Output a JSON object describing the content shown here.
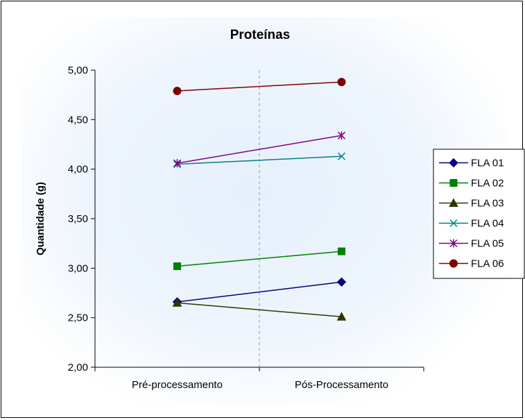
{
  "chart_data": {
    "type": "line",
    "title": "Proteínas",
    "xlabel": "",
    "ylabel": "Quantidade (g)",
    "categories": [
      "Pré-processamento",
      "Pós-Processamento"
    ],
    "ylim": [
      2.0,
      5.0
    ],
    "yticks": [
      "2,00",
      "2,50",
      "3,00",
      "3,50",
      "4,00",
      "4,50",
      "5,00"
    ],
    "ytick_values": [
      2.0,
      2.5,
      3.0,
      3.5,
      4.0,
      4.5,
      5.0
    ],
    "grid": false,
    "legend_position": "right",
    "series": [
      {
        "name": "FLA 01",
        "values": [
          2.66,
          2.86
        ],
        "color": "#000080",
        "marker": "diamond"
      },
      {
        "name": "FLA 02",
        "values": [
          3.02,
          3.17
        ],
        "color": "#008000",
        "marker": "square"
      },
      {
        "name": "FLA 03",
        "values": [
          2.65,
          2.51
        ],
        "color": "#333300",
        "marker": "triangle"
      },
      {
        "name": "FLA 04",
        "values": [
          4.05,
          4.13
        ],
        "color": "#008080",
        "marker": "x"
      },
      {
        "name": "FLA 05",
        "values": [
          4.06,
          4.34
        ],
        "color": "#800080",
        "marker": "star"
      },
      {
        "name": "FLA 06",
        "values": [
          4.79,
          4.88
        ],
        "color": "#800000",
        "marker": "circle"
      }
    ]
  }
}
